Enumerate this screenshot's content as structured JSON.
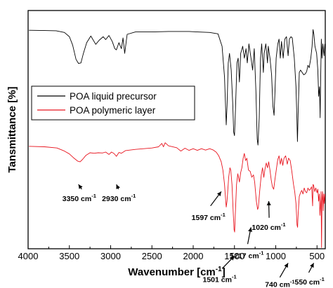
{
  "chart_data": {
    "type": "line",
    "xlabel": "Wavenumber [cm",
    "xlabel_sup": "-1",
    "xlabel_tail": "]",
    "ylabel": "Tansmittance [%]",
    "xlim": [
      4000,
      400
    ],
    "x_reversed": true,
    "y_ticks_shown": false,
    "y_range": [
      0,
      100
    ],
    "x_ticks": [
      4000,
      3500,
      3000,
      2500,
      2000,
      1500,
      1000,
      500
    ],
    "x_tick_labels": [
      "4000",
      "3500",
      "3000",
      "2500",
      "2000",
      "1500",
      "1000",
      "500"
    ],
    "legend": {
      "placement": "upper-left",
      "boxed": true
    },
    "series": [
      {
        "name": "POA liquid precursor",
        "color": "#000000",
        "points": [
          [
            3990,
            91.7
          ],
          [
            3800,
            91.6
          ],
          [
            3660,
            91.5
          ],
          [
            3560,
            90.8
          ],
          [
            3500,
            89.0
          ],
          [
            3460,
            85.5
          ],
          [
            3420,
            79.5
          ],
          [
            3390,
            77.8
          ],
          [
            3360,
            78.0
          ],
          [
            3330,
            82.0
          ],
          [
            3290,
            86.5
          ],
          [
            3240,
            89.3
          ],
          [
            3180,
            85.8
          ],
          [
            3140,
            87.5
          ],
          [
            3090,
            89.0
          ],
          [
            3060,
            87.8
          ],
          [
            3020,
            89.5
          ],
          [
            2980,
            87.0
          ],
          [
            2950,
            84.0
          ],
          [
            2930,
            83.5
          ],
          [
            2900,
            86.5
          ],
          [
            2870,
            84.0
          ],
          [
            2850,
            88.5
          ],
          [
            2830,
            82.0
          ],
          [
            2800,
            90.0
          ],
          [
            2700,
            91.0
          ],
          [
            2500,
            91.0
          ],
          [
            2300,
            91.2
          ],
          [
            2050,
            91.2
          ],
          [
            1950,
            91.0
          ],
          [
            1800,
            90.8
          ],
          [
            1700,
            90.2
          ],
          [
            1650,
            85.0
          ],
          [
            1620,
            72.0
          ],
          [
            1600,
            52.0
          ],
          [
            1590,
            60.0
          ],
          [
            1575,
            78.0
          ],
          [
            1560,
            82.0
          ],
          [
            1540,
            75.0
          ],
          [
            1520,
            60.0
          ],
          [
            1510,
            49.0
          ],
          [
            1500,
            47.5
          ],
          [
            1490,
            56.0
          ],
          [
            1470,
            78.0
          ],
          [
            1455,
            80.0
          ],
          [
            1440,
            70.0
          ],
          [
            1425,
            82.0
          ],
          [
            1400,
            85.0
          ],
          [
            1380,
            80.0
          ],
          [
            1360,
            84.0
          ],
          [
            1345,
            78.0
          ],
          [
            1325,
            86.0
          ],
          [
            1300,
            80.0
          ],
          [
            1280,
            75.0
          ],
          [
            1260,
            84.0
          ],
          [
            1240,
            66.0
          ],
          [
            1225,
            46.0
          ],
          [
            1215,
            43.5
          ],
          [
            1200,
            55.0
          ],
          [
            1185,
            80.0
          ],
          [
            1170,
            86.0
          ],
          [
            1150,
            74.0
          ],
          [
            1140,
            82.0
          ],
          [
            1120,
            86.0
          ],
          [
            1100,
            78.0
          ],
          [
            1090,
            85.0
          ],
          [
            1070,
            80.0
          ],
          [
            1050,
            73.0
          ],
          [
            1035,
            60.0
          ],
          [
            1020,
            56.0
          ],
          [
            1010,
            65.0
          ],
          [
            995,
            80.0
          ],
          [
            975,
            86.0
          ],
          [
            960,
            88.0
          ],
          [
            945,
            80.0
          ],
          [
            930,
            87.0
          ],
          [
            910,
            80.0
          ],
          [
            890,
            88.0
          ],
          [
            870,
            89.0
          ],
          [
            850,
            81.0
          ],
          [
            835,
            88.0
          ],
          [
            815,
            89.0
          ],
          [
            800,
            88.5
          ],
          [
            775,
            80.0
          ],
          [
            755,
            68.0
          ],
          [
            745,
            56.0
          ],
          [
            737,
            45.0
          ],
          [
            728,
            58.0
          ],
          [
            715,
            74.0
          ],
          [
            700,
            75.0
          ],
          [
            680,
            74.0
          ],
          [
            660,
            73.0
          ],
          [
            640,
            73.5
          ],
          [
            625,
            74.5
          ],
          [
            610,
            77.0
          ],
          [
            595,
            76.0
          ],
          [
            575,
            80.0
          ],
          [
            560,
            85.0
          ],
          [
            548,
            92.0
          ],
          [
            538,
            90.0
          ],
          [
            525,
            85.0
          ],
          [
            505,
            82.0
          ],
          [
            490,
            75.0
          ],
          [
            480,
            64.0
          ],
          [
            470,
            68.0
          ],
          [
            462,
            55.0
          ],
          [
            455,
            72.0
          ],
          [
            448,
            88.0
          ],
          [
            440,
            80.0
          ],
          [
            430,
            86.0
          ],
          [
            415,
            81.0
          ],
          [
            405,
            86.0
          ]
        ]
      },
      {
        "name": "POA polymeric layer",
        "color": "#e8141e",
        "points": [
          [
            3990,
            43.0
          ],
          [
            3800,
            42.8
          ],
          [
            3650,
            42.3
          ],
          [
            3560,
            41.0
          ],
          [
            3500,
            39.8
          ],
          [
            3450,
            38.2
          ],
          [
            3400,
            36.8
          ],
          [
            3370,
            36.5
          ],
          [
            3340,
            37.5
          ],
          [
            3300,
            39.2
          ],
          [
            3250,
            40.3
          ],
          [
            3200,
            40.1
          ],
          [
            3150,
            40.3
          ],
          [
            3100,
            40.2
          ],
          [
            3060,
            40.6
          ],
          [
            3020,
            39.6
          ],
          [
            2990,
            40.6
          ],
          [
            2960,
            40.0
          ],
          [
            2930,
            38.8
          ],
          [
            2900,
            40.4
          ],
          [
            2870,
            40.1
          ],
          [
            2820,
            41.2
          ],
          [
            2700,
            41.7
          ],
          [
            2600,
            42.0
          ],
          [
            2500,
            42.3
          ],
          [
            2420,
            42.8
          ],
          [
            2380,
            44.2
          ],
          [
            2360,
            42.8
          ],
          [
            2340,
            44.5
          ],
          [
            2300,
            43.2
          ],
          [
            2200,
            42.4
          ],
          [
            2150,
            41.0
          ],
          [
            2100,
            42.2
          ],
          [
            2050,
            41.3
          ],
          [
            2000,
            42.0
          ],
          [
            1950,
            41.3
          ],
          [
            1900,
            42.0
          ],
          [
            1850,
            41.4
          ],
          [
            1800,
            42.0
          ],
          [
            1760,
            41.5
          ],
          [
            1720,
            40.5
          ],
          [
            1690,
            39.0
          ],
          [
            1660,
            36.5
          ],
          [
            1640,
            33.0
          ],
          [
            1620,
            27.0
          ],
          [
            1610,
            22.0
          ],
          [
            1600,
            17.5
          ],
          [
            1590,
            20.0
          ],
          [
            1570,
            30.0
          ],
          [
            1555,
            34.0
          ],
          [
            1545,
            33.0
          ],
          [
            1530,
            27.0
          ],
          [
            1515,
            15.0
          ],
          [
            1505,
            8.0
          ],
          [
            1498,
            7.0
          ],
          [
            1490,
            14.0
          ],
          [
            1475,
            27.0
          ],
          [
            1460,
            31.5
          ],
          [
            1440,
            28.0
          ],
          [
            1425,
            32.0
          ],
          [
            1410,
            34.0
          ],
          [
            1395,
            38.0
          ],
          [
            1380,
            40.0
          ],
          [
            1365,
            37.0
          ],
          [
            1350,
            38.0
          ],
          [
            1330,
            33.0
          ],
          [
            1310,
            32.5
          ],
          [
            1290,
            30.0
          ],
          [
            1270,
            31.0
          ],
          [
            1255,
            28.0
          ],
          [
            1235,
            20.0
          ],
          [
            1220,
            16.5
          ],
          [
            1210,
            17.5
          ],
          [
            1195,
            24.0
          ],
          [
            1175,
            31.0
          ],
          [
            1160,
            34.0
          ],
          [
            1145,
            30.0
          ],
          [
            1130,
            33.5
          ],
          [
            1115,
            36.0
          ],
          [
            1100,
            34.0
          ],
          [
            1085,
            36.5
          ],
          [
            1070,
            33.0
          ],
          [
            1055,
            29.0
          ],
          [
            1040,
            26.0
          ],
          [
            1025,
            25.0
          ],
          [
            1010,
            29.0
          ],
          [
            990,
            34.0
          ],
          [
            975,
            37.5
          ],
          [
            960,
            39.0
          ],
          [
            945,
            35.5
          ],
          [
            930,
            38.0
          ],
          [
            915,
            35.0
          ],
          [
            900,
            38.0
          ],
          [
            880,
            39.0
          ],
          [
            860,
            35.5
          ],
          [
            845,
            38.0
          ],
          [
            825,
            37.0
          ],
          [
            805,
            32.5
          ],
          [
            785,
            27.0
          ],
          [
            770,
            24.0
          ],
          [
            755,
            19.0
          ],
          [
            742,
            10.0
          ],
          [
            735,
            9.0
          ],
          [
            728,
            15.0
          ],
          [
            715,
            22.0
          ],
          [
            700,
            23.5
          ],
          [
            685,
            24.5
          ],
          [
            670,
            23.0
          ],
          [
            655,
            25.5
          ],
          [
            640,
            24.0
          ],
          [
            625,
            23.5
          ],
          [
            610,
            25.5
          ],
          [
            595,
            24.5
          ],
          [
            580,
            25.0
          ],
          [
            565,
            26.0
          ],
          [
            553,
            18.0
          ],
          [
            548,
            27.0
          ],
          [
            540,
            26.5
          ],
          [
            528,
            24.0
          ],
          [
            515,
            25.5
          ],
          [
            500,
            23.5
          ],
          [
            490,
            25.0
          ],
          [
            480,
            20.0
          ],
          [
            472,
            23.0
          ],
          [
            465,
            14.0
          ],
          [
            458,
            18.0
          ],
          [
            451,
            24.0
          ],
          [
            445,
            0.5
          ],
          [
            440,
            20.0
          ],
          [
            432,
            24.0
          ],
          [
            425,
            16.0
          ],
          [
            418,
            23.0
          ],
          [
            410,
            19.0
          ],
          [
            404,
            23.0
          ]
        ]
      }
    ],
    "annotations": [
      {
        "text": "3350 cm",
        "sup": "-1",
        "peak_x": 3350,
        "peak_y": 36.5
      },
      {
        "text": "2930 cm",
        "sup": "-1",
        "peak_x": 2930,
        "peak_y": 38.8
      },
      {
        "text": "1597 cm",
        "sup": "-1",
        "peak_x": 1597,
        "peak_y": 17.5
      },
      {
        "text": "1501 cm",
        "sup": "-1",
        "peak_x": 1501,
        "peak_y": 7.0
      },
      {
        "text": "1217 cm",
        "sup": "-1",
        "peak_x": 1217,
        "peak_y": 16.5
      },
      {
        "text": "1020 cm",
        "sup": "-1",
        "peak_x": 1020,
        "peak_y": 25.0
      },
      {
        "text": "740 cm",
        "sup": "-1",
        "peak_x": 740,
        "peak_y": 9.0
      },
      {
        "text": "550 cm",
        "sup": "-1",
        "peak_x": 550,
        "peak_y": 18.0
      }
    ]
  }
}
